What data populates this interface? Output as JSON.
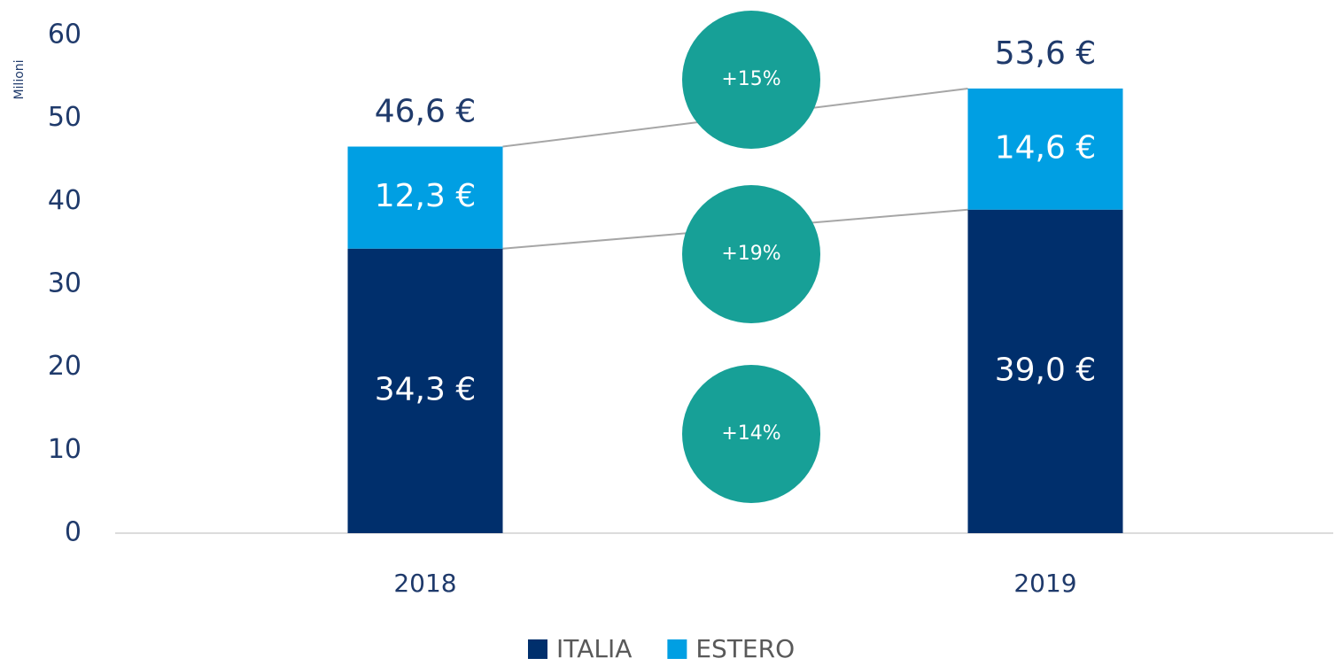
{
  "chart_data": {
    "type": "stacked_bar",
    "y_label": "Milioni",
    "categories": [
      "2018",
      "2019"
    ],
    "series": [
      {
        "name": "ITALIA",
        "color": "#002f6c",
        "values": [
          34.3,
          39.0
        ],
        "value_labels": [
          "34,3 €",
          "39,0 €"
        ]
      },
      {
        "name": "ESTERO",
        "color": "#009fe3",
        "values": [
          12.3,
          14.6
        ],
        "value_labels": [
          "12,3 €",
          "14,6 €"
        ]
      }
    ],
    "totals": {
      "values": [
        46.6,
        53.6
      ],
      "value_labels": [
        "46,6 €",
        "53,6 €"
      ]
    },
    "annotations": [
      "+15%",
      "+19%",
      "+14%"
    ],
    "annotation_color": "#17a097",
    "ylim": [
      0,
      60
    ],
    "yticks": [
      0,
      10,
      20,
      30,
      40,
      50,
      60
    ],
    "legend": "bottom"
  }
}
